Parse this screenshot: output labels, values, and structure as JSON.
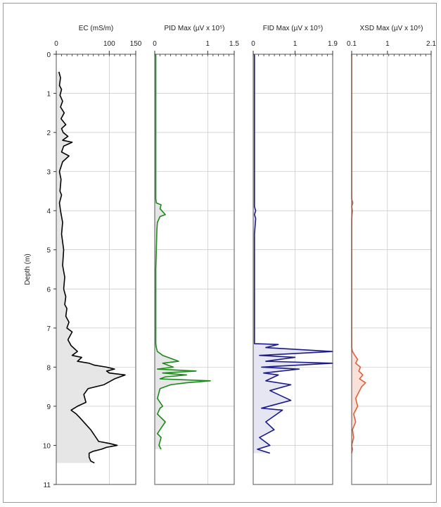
{
  "chart_data": [
    {
      "type": "line",
      "title": "EC (mS/m)",
      "color": "#000000",
      "fill": "#e6e6e6",
      "xlim": [
        0,
        150
      ],
      "xticks": [
        0,
        100,
        150
      ],
      "ylabel": "Depth (m)",
      "ylim": [
        11,
        0
      ],
      "yticks": [
        0,
        1,
        2,
        3,
        4,
        5,
        6,
        7,
        8,
        9,
        10,
        11
      ],
      "grid": true,
      "series": [
        {
          "x": [
            5,
            8,
            6,
            10,
            7,
            12,
            8,
            15,
            9,
            18,
            10,
            13,
            22,
            12,
            30,
            14,
            10,
            24,
            12,
            6,
            9,
            7,
            10,
            6,
            8,
            12,
            10,
            14,
            12,
            16,
            14,
            18,
            16,
            20,
            18,
            24,
            20,
            30,
            26,
            22,
            28,
            40,
            30,
            48,
            40,
            62,
            72,
            95,
            110,
            95,
            100,
            130,
            110,
            90,
            75,
            60,
            52,
            56,
            40,
            28,
            38,
            45,
            55,
            65,
            75,
            80,
            100,
            115,
            95,
            85,
            70,
            62,
            62,
            65,
            72
          ],
          "y": [
            0.45,
            0.6,
            0.8,
            0.9,
            1.05,
            1.2,
            1.35,
            1.5,
            1.65,
            1.8,
            1.9,
            2.0,
            2.1,
            2.2,
            2.25,
            2.35,
            2.5,
            2.6,
            2.75,
            3.0,
            3.2,
            3.5,
            3.6,
            3.8,
            4.0,
            4.3,
            4.6,
            5.0,
            5.4,
            5.7,
            6.0,
            6.2,
            6.4,
            6.5,
            6.7,
            6.85,
            7.0,
            7.1,
            7.2,
            7.3,
            7.45,
            7.6,
            7.7,
            7.75,
            7.85,
            7.9,
            7.95,
            8.0,
            8.05,
            8.1,
            8.15,
            8.2,
            8.3,
            8.45,
            8.5,
            8.55,
            8.7,
            8.9,
            9.0,
            9.1,
            9.2,
            9.3,
            9.45,
            9.6,
            9.8,
            9.9,
            9.95,
            10.0,
            10.05,
            10.1,
            10.15,
            10.2,
            10.3,
            10.4,
            10.45
          ]
        }
      ]
    },
    {
      "type": "line",
      "title": "PID Max (µV x 10⁵)",
      "color": "#1a8a1a",
      "fill": "#e6e6e6",
      "xlim": [
        0,
        1.5
      ],
      "xticks": [
        0,
        1,
        1.5
      ],
      "ylim": [
        11,
        0
      ],
      "grid": true,
      "series": [
        {
          "x": [
            0.02,
            0.02,
            0.02,
            0.03,
            0.12,
            0.1,
            0.2,
            0.1,
            0.05,
            0.04,
            0.03,
            0.02,
            0.02,
            0.02,
            0.02,
            0.02,
            0.03,
            0.05,
            0.15,
            0.25,
            0.45,
            0.15,
            0.35,
            0.05,
            0.78,
            0.15,
            0.6,
            0.2,
            0.1,
            1.05,
            0.6,
            0.3,
            0.1,
            0.05,
            0.15,
            0.1,
            0.05,
            0.2,
            0.1,
            0.05,
            0.12,
            0.08,
            0.12
          ],
          "y": [
            0.0,
            2.0,
            3.7,
            3.8,
            3.85,
            3.95,
            4.1,
            4.15,
            4.3,
            4.5,
            5.0,
            5.5,
            6.0,
            6.5,
            7.0,
            7.4,
            7.5,
            7.6,
            7.7,
            7.75,
            7.85,
            7.9,
            8.0,
            8.05,
            8.1,
            8.15,
            8.2,
            8.25,
            8.3,
            8.35,
            8.4,
            8.45,
            8.55,
            8.8,
            9.0,
            9.05,
            9.2,
            9.4,
            9.6,
            9.7,
            9.8,
            10.0,
            10.1
          ]
        }
      ]
    },
    {
      "type": "line",
      "title": "FID Max (µV x 10⁵)",
      "color": "#1a1a8a",
      "fill": "#e6e6f2",
      "xlim": [
        0,
        1.9
      ],
      "xticks": [
        0,
        1,
        1.9
      ],
      "ylim": [
        11,
        0
      ],
      "grid": true,
      "series": [
        {
          "x": [
            0.03,
            0.03,
            0.06,
            0.03,
            0.06,
            0.03,
            0.03,
            0.03,
            0.6,
            0.3,
            1.9,
            0.15,
            1.0,
            0.3,
            1.9,
            0.2,
            1.1,
            0.25,
            0.6,
            0.3,
            0.9,
            0.4,
            0.9,
            0.2,
            0.7,
            0.3,
            0.5,
            0.15,
            0.4,
            0.1,
            0.4
          ],
          "y": [
            0.0,
            3.9,
            4.0,
            4.1,
            4.2,
            4.6,
            5.0,
            7.4,
            7.42,
            7.5,
            7.6,
            7.7,
            7.75,
            7.85,
            7.9,
            8.0,
            8.05,
            8.15,
            8.2,
            8.35,
            8.45,
            8.6,
            8.85,
            9.05,
            9.1,
            9.4,
            9.6,
            9.8,
            10.0,
            10.1,
            10.2
          ]
        }
      ]
    },
    {
      "type": "line",
      "title": "XSD Max (µV x 10⁶)",
      "color": "#e0603c",
      "fill": "#f9e1da",
      "xlim": [
        0.1,
        2.1
      ],
      "xticks": [
        0.1,
        1,
        2.1
      ],
      "ylim": [
        11,
        0
      ],
      "grid": true,
      "series": [
        {
          "x": [
            0.1,
            0.1,
            0.13,
            0.1,
            0.12,
            0.1,
            0.1,
            0.1,
            0.12,
            0.18,
            0.25,
            0.2,
            0.32,
            0.28,
            0.38,
            0.3,
            0.45,
            0.35,
            0.3,
            0.2,
            0.25,
            0.15,
            0.2,
            0.12,
            0.15,
            0.1,
            0.12,
            0.1
          ],
          "y": [
            0.0,
            3.7,
            3.8,
            3.9,
            4.0,
            4.2,
            5.0,
            7.5,
            7.6,
            7.7,
            7.8,
            7.9,
            8.0,
            8.1,
            8.2,
            8.3,
            8.4,
            8.5,
            8.6,
            8.8,
            9.0,
            9.2,
            9.4,
            9.6,
            9.8,
            10.0,
            10.1,
            10.2
          ]
        }
      ]
    }
  ]
}
